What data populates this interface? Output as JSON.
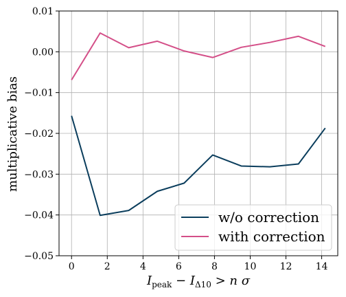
{
  "chart_data": {
    "type": "line",
    "xlabel": "",
    "ylabel": "multiplicative bias",
    "xlim": [
      -0.7,
      14.9
    ],
    "ylim": [
      -0.05,
      0.01
    ],
    "xticks": [
      0,
      2,
      4,
      6,
      8,
      10,
      12,
      14
    ],
    "yticks": [
      -0.05,
      -0.04,
      -0.03,
      -0.02,
      -0.01,
      0.0,
      0.01
    ],
    "ytick_labels": [
      "−0.05",
      "−0.04",
      "−0.03",
      "−0.02",
      "−0.01",
      "0.00",
      "0.01"
    ],
    "xtick_labels": [
      "0",
      "2",
      "4",
      "6",
      "8",
      "10",
      "12",
      "14"
    ],
    "grid": true,
    "legend_position": "lower-right",
    "series": [
      {
        "name": "w/o correction",
        "color": "#0a3d5c",
        "x": [
          0,
          1.6,
          3.2,
          4.8,
          6.3,
          7.9,
          9.5,
          11.1,
          12.7,
          14.2
        ],
        "y": [
          -0.0157,
          -0.0401,
          -0.0389,
          -0.0342,
          -0.0322,
          -0.0253,
          -0.028,
          -0.0282,
          -0.0275,
          -0.0187
        ]
      },
      {
        "name": "with correction",
        "color": "#d44f88",
        "x": [
          0,
          1.6,
          3.2,
          4.8,
          6.3,
          7.9,
          9.5,
          11.1,
          12.7,
          14.2
        ],
        "y": [
          -0.0069,
          0.0046,
          0.001,
          0.0026,
          0.0002,
          -0.0014,
          0.0011,
          0.0023,
          0.0038,
          0.0013
        ]
      }
    ]
  }
}
